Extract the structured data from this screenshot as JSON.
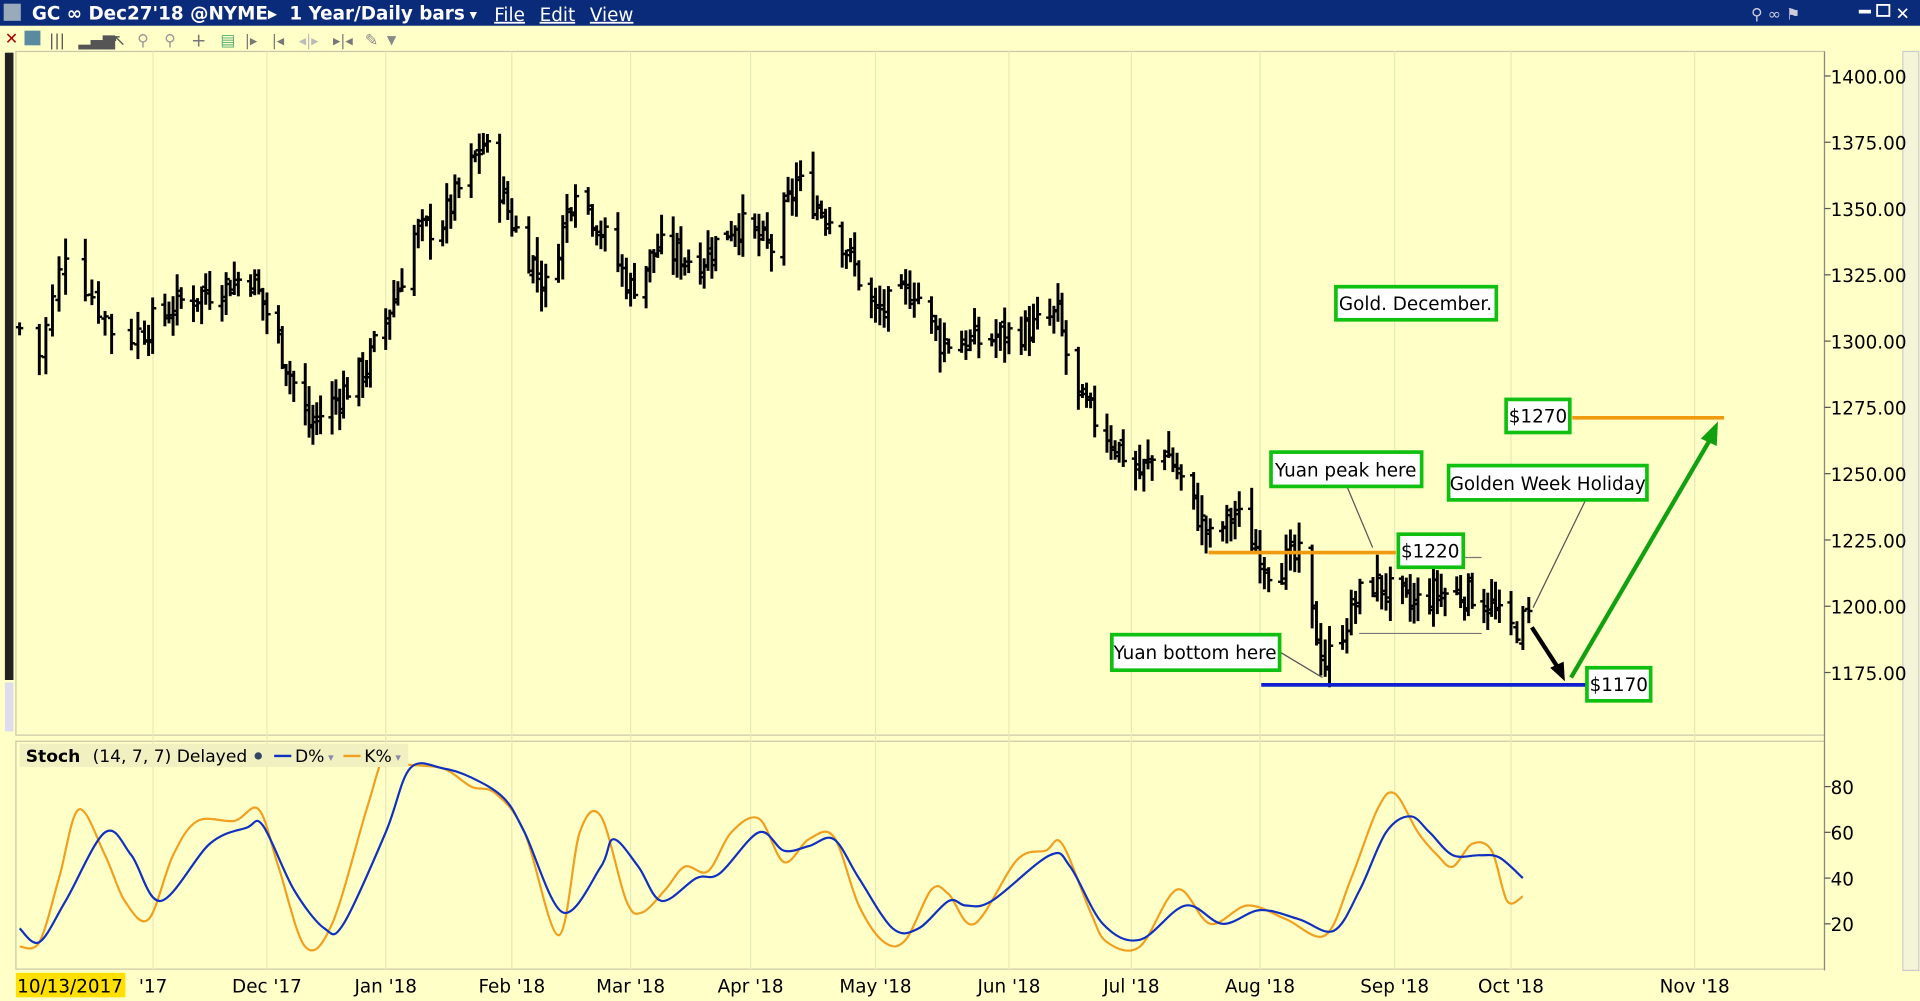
{
  "window": {
    "symbol": "GC ∞ Dec27'18 @NYME▸",
    "period": "1 Year/Daily bars",
    "menu": [
      "File",
      "Edit",
      "View"
    ]
  },
  "toolbar_icons": [
    "close-icon",
    "text-icon",
    "bar-chart-icon",
    "volume-icon",
    "cursor-icon",
    "zoom-in-icon",
    "zoom-out-icon",
    "crosshair-icon",
    "layout-icon",
    "scroll-right-icon",
    "scroll-left-icon",
    "center-icon",
    "end-icon",
    "tools-icon",
    "dropdown-icon"
  ],
  "colors": {
    "background": "#ffffc8",
    "titlebar": "#0a2a7a",
    "bars": "#000000",
    "k_line": "#f0a020",
    "d_line": "#1030c0",
    "annotation_border": "#10c010",
    "support": "#1020d0",
    "resistance": "#f09a10",
    "arrow_up": "#10a010"
  },
  "chart_data": [
    {
      "type": "ohlc",
      "title": "Gold. December.",
      "ylabel": "",
      "ylim": [
        1160,
        1410
      ],
      "yticks": [
        "1400.00",
        "1375.00",
        "1350.00",
        "1325.00",
        "1300.00",
        "1275.00",
        "1250.00",
        "1225.00",
        "1200.00",
        "1175.00"
      ],
      "xticks": [
        "'17",
        "Dec '17",
        "Jan '18",
        "Feb '18",
        "Mar '18",
        "Apr '18",
        "May '18",
        "Jun '18",
        "Jul '18",
        "Aug '18",
        "Sep '18",
        "Oct '18",
        "Nov '18"
      ],
      "start_date_label": "10/13/2017",
      "close_keypoints": [
        [
          "2017-10-13",
          1305
        ],
        [
          "2017-10-16",
          1295
        ],
        [
          "2017-10-20",
          1335
        ],
        [
          "2017-10-28",
          1300
        ],
        [
          "2017-11-10",
          1315
        ],
        [
          "2017-11-27",
          1325
        ],
        [
          "2017-12-04",
          1300
        ],
        [
          "2017-12-12",
          1268
        ],
        [
          "2017-12-27",
          1290
        ],
        [
          "2018-01-04",
          1320
        ],
        [
          "2018-01-08",
          1340
        ],
        [
          "2018-01-15",
          1345
        ],
        [
          "2018-01-25",
          1375
        ],
        [
          "2018-02-01",
          1345
        ],
        [
          "2018-02-09",
          1320
        ],
        [
          "2018-02-16",
          1360
        ],
        [
          "2018-03-01",
          1320
        ],
        [
          "2018-03-08",
          1335
        ],
        [
          "2018-03-19",
          1330
        ],
        [
          "2018-03-28",
          1345
        ],
        [
          "2018-04-06",
          1335
        ],
        [
          "2018-04-12",
          1360
        ],
        [
          "2018-04-21",
          1345
        ],
        [
          "2018-05-01",
          1310
        ],
        [
          "2018-05-10",
          1320
        ],
        [
          "2018-05-16",
          1300
        ],
        [
          "2018-05-25",
          1300
        ],
        [
          "2018-06-07",
          1305
        ],
        [
          "2018-06-13",
          1310
        ],
        [
          "2018-06-17",
          1280
        ],
        [
          "2018-06-25",
          1265
        ],
        [
          "2018-07-03",
          1250
        ],
        [
          "2018-07-09",
          1260
        ],
        [
          "2018-07-20",
          1225
        ],
        [
          "2018-07-26",
          1235
        ],
        [
          "2018-08-03",
          1215
        ],
        [
          "2018-08-10",
          1218
        ],
        [
          "2018-08-13",
          1195
        ],
        [
          "2018-08-16",
          1178
        ],
        [
          "2018-08-21",
          1195
        ],
        [
          "2018-08-26",
          1210
        ],
        [
          "2018-09-05",
          1200
        ],
        [
          "2018-09-11",
          1205
        ],
        [
          "2018-09-21",
          1205
        ],
        [
          "2018-09-26",
          1200
        ],
        [
          "2018-09-30",
          1190
        ],
        [
          "2018-10-04",
          1195
        ]
      ],
      "annotations": {
        "title_box": "Gold. December.",
        "target": "$1270",
        "yuan_peak": "Yuan peak here",
        "golden_week": "Golden Week Holiday",
        "resistance": "$1220",
        "yuan_bottom": "Yuan bottom here",
        "support": "$1170"
      },
      "levels": {
        "target": 1270,
        "resistance": 1220,
        "support": 1170
      }
    },
    {
      "type": "line",
      "title": "Stoch",
      "params": "(14, 7, 7) Delayed",
      "legend": [
        "D%",
        "K%"
      ],
      "ylim": [
        0,
        100
      ],
      "yticks": [
        "80",
        "60",
        "40",
        "20"
      ],
      "series": [
        {
          "name": "D%",
          "points": [
            [
              "2017-10-13",
              18
            ],
            [
              "2017-10-16",
              12
            ],
            [
              "2017-10-20",
              30
            ],
            [
              "2017-10-26",
              60
            ],
            [
              "2017-10-30",
              50
            ],
            [
              "2017-11-05",
              30
            ],
            [
              "2017-11-17",
              55
            ],
            [
              "2017-11-26",
              62
            ],
            [
              "2017-11-30",
              63
            ],
            [
              "2017-12-08",
              35
            ],
            [
              "2017-12-16",
              18
            ],
            [
              "2017-12-21",
              20
            ],
            [
              "2018-01-01",
              60
            ],
            [
              "2018-01-07",
              88
            ],
            [
              "2018-01-15",
              88
            ],
            [
              "2018-01-22",
              84
            ],
            [
              "2018-01-30",
              75
            ],
            [
              "2018-02-04",
              60
            ],
            [
              "2018-02-13",
              25
            ],
            [
              "2018-02-22",
              45
            ],
            [
              "2018-02-25",
              57
            ],
            [
              "2018-03-03",
              45
            ],
            [
              "2018-03-09",
              30
            ],
            [
              "2018-03-18",
              40
            ],
            [
              "2018-03-24",
              42
            ],
            [
              "2018-04-03",
              60
            ],
            [
              "2018-04-09",
              52
            ],
            [
              "2018-04-15",
              54
            ],
            [
              "2018-04-21",
              57
            ],
            [
              "2018-04-27",
              40
            ],
            [
              "2018-05-05",
              18
            ],
            [
              "2018-05-11",
              18
            ],
            [
              "2018-05-18",
              30
            ],
            [
              "2018-05-22",
              28
            ],
            [
              "2018-05-28",
              30
            ],
            [
              "2018-06-11",
              50
            ],
            [
              "2018-06-16",
              45
            ],
            [
              "2018-06-24",
              20
            ],
            [
              "2018-07-03",
              13
            ],
            [
              "2018-07-14",
              28
            ],
            [
              "2018-07-23",
              20
            ],
            [
              "2018-08-01",
              26
            ],
            [
              "2018-08-10",
              22
            ],
            [
              "2018-08-18",
              17
            ],
            [
              "2018-08-24",
              35
            ],
            [
              "2018-08-30",
              60
            ],
            [
              "2018-09-05",
              67
            ],
            [
              "2018-09-10",
              60
            ],
            [
              "2018-09-16",
              50
            ],
            [
              "2018-09-23",
              50
            ],
            [
              "2018-09-28",
              49
            ],
            [
              "2018-10-03",
              40
            ]
          ]
        },
        {
          "name": "K%",
          "points": [
            [
              "2017-10-13",
              10
            ],
            [
              "2017-10-16",
              12
            ],
            [
              "2017-10-19",
              40
            ],
            [
              "2017-10-22",
              70
            ],
            [
              "2017-10-26",
              50
            ],
            [
              "2017-10-29",
              30
            ],
            [
              "2017-11-02",
              22
            ],
            [
              "2017-11-08",
              50
            ],
            [
              "2017-11-14",
              65
            ],
            [
              "2017-11-23",
              65
            ],
            [
              "2017-11-29",
              70
            ],
            [
              "2017-12-04",
              45
            ],
            [
              "2017-12-11",
              10
            ],
            [
              "2017-12-18",
              20
            ],
            [
              "2017-12-27",
              70
            ],
            [
              "2018-01-01",
              95
            ],
            [
              "2018-01-05",
              90
            ],
            [
              "2018-01-15",
              88
            ],
            [
              "2018-01-22",
              80
            ],
            [
              "2018-01-28",
              77
            ],
            [
              "2018-02-04",
              60
            ],
            [
              "2018-02-12",
              15
            ],
            [
              "2018-02-17",
              60
            ],
            [
              "2018-02-22",
              67
            ],
            [
              "2018-02-28",
              30
            ],
            [
              "2018-03-04",
              25
            ],
            [
              "2018-03-10",
              35
            ],
            [
              "2018-03-15",
              45
            ],
            [
              "2018-03-21",
              43
            ],
            [
              "2018-03-27",
              60
            ],
            [
              "2018-04-03",
              66
            ],
            [
              "2018-04-09",
              47
            ],
            [
              "2018-04-15",
              57
            ],
            [
              "2018-04-21",
              58
            ],
            [
              "2018-04-27",
              28
            ],
            [
              "2018-05-03",
              12
            ],
            [
              "2018-05-08",
              13
            ],
            [
              "2018-05-14",
              35
            ],
            [
              "2018-05-18",
              33
            ],
            [
              "2018-05-24",
              20
            ],
            [
              "2018-06-03",
              48
            ],
            [
              "2018-06-10",
              52
            ],
            [
              "2018-06-14",
              55
            ],
            [
              "2018-06-21",
              25
            ],
            [
              "2018-06-25",
              12
            ],
            [
              "2018-07-03",
              10
            ],
            [
              "2018-07-12",
              35
            ],
            [
              "2018-07-20",
              20
            ],
            [
              "2018-07-29",
              28
            ],
            [
              "2018-08-07",
              22
            ],
            [
              "2018-08-16",
              15
            ],
            [
              "2018-08-22",
              40
            ],
            [
              "2018-08-28",
              70
            ],
            [
              "2018-09-01",
              77
            ],
            [
              "2018-09-07",
              60
            ],
            [
              "2018-09-12",
              50
            ],
            [
              "2018-09-16",
              45
            ],
            [
              "2018-09-21",
              55
            ],
            [
              "2018-09-26",
              52
            ],
            [
              "2018-09-30",
              30
            ],
            [
              "2018-10-03",
              32
            ]
          ]
        }
      ]
    }
  ]
}
